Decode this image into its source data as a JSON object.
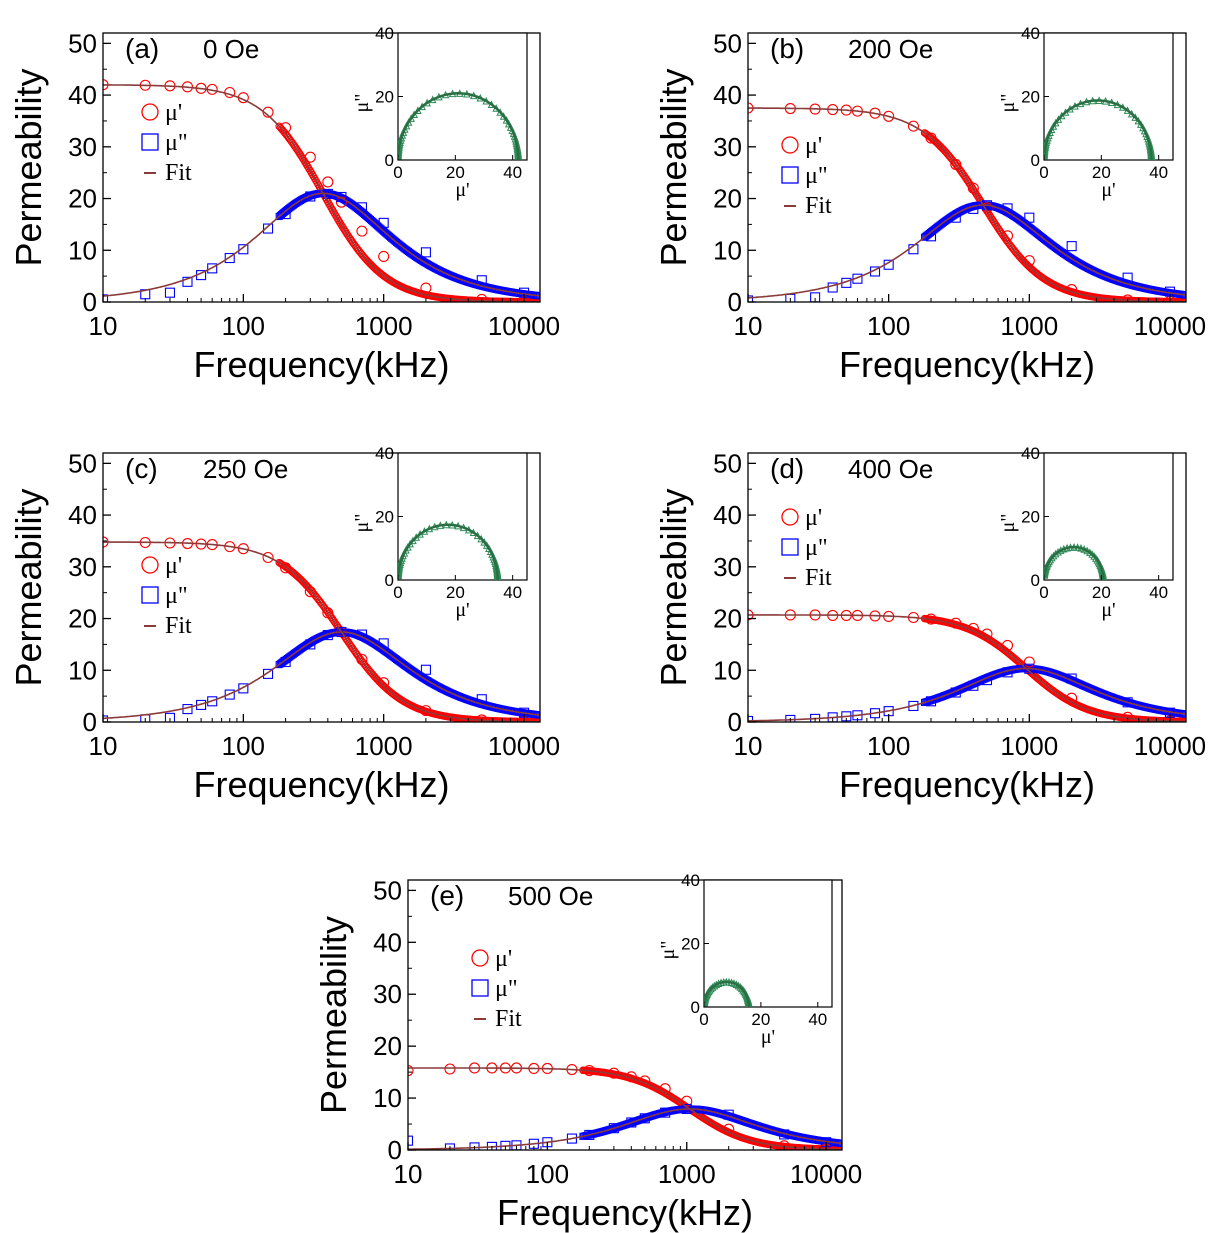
{
  "figure": {
    "panels": [
      {
        "label": "(a)",
        "field": "0 Oe"
      },
      {
        "label": "(b)",
        "field": "200 Oe"
      },
      {
        "label": "(c)",
        "field": "250 Oe"
      },
      {
        "label": "(d)",
        "field": "400 Oe"
      },
      {
        "label": "(e)",
        "field": "500 Oe"
      }
    ]
  },
  "chart_data": [
    {
      "type": "scatter",
      "panel": "(a)",
      "annotation": "0 Oe",
      "xlabel": "Frequency(kHz)",
      "ylabel": "Permeability",
      "x_scale": "log",
      "xlim": [
        10,
        13000
      ],
      "ylim": [
        0,
        52
      ],
      "x_ticks": [
        "10",
        "100",
        "1000",
        "10000"
      ],
      "y_ticks": [
        "0",
        "10",
        "20",
        "30",
        "40",
        "50"
      ],
      "legend": [
        "μ'",
        "μ\"",
        "Fit"
      ],
      "legend_position": "upper-left",
      "model": {
        "mu_s": 42.0,
        "f_r_kHz": 370
      },
      "series": [
        {
          "name": "μ'",
          "color": "#ff0000",
          "marker": "circle",
          "x": [
            10,
            20,
            30,
            40,
            50,
            60,
            80,
            100,
            150,
            200,
            300,
            400,
            500,
            700,
            1000,
            2000,
            5000,
            10000
          ],
          "values": [
            42.0,
            41.9,
            41.8,
            41.6,
            41.3,
            41.1,
            40.5,
            39.5,
            36.7,
            33.7,
            28.0,
            23.2,
            19.3,
            13.7,
            8.8,
            2.7,
            0.5,
            0.1
          ]
        },
        {
          "name": "μ\"",
          "color": "#0000ff",
          "marker": "square",
          "x": [
            10,
            20,
            30,
            40,
            50,
            60,
            80,
            100,
            150,
            200,
            300,
            400,
            500,
            700,
            1000,
            2000,
            5000,
            10000
          ],
          "values": [
            0.5,
            1.5,
            1.8,
            3.9,
            5.2,
            6.5,
            8.5,
            10.2,
            14.2,
            17.0,
            20.4,
            20.9,
            20.3,
            18.3,
            15.3,
            9.6,
            4.2,
            1.8
          ]
        },
        {
          "name": "Fit",
          "color": "#8b3a3a",
          "marker": "line"
        }
      ],
      "inset": {
        "xlabel": "μ'",
        "ylabel": "μ\"",
        "xlim": [
          0,
          45
        ],
        "ylim": [
          0,
          40
        ],
        "x_ticks": [
          "0",
          "20",
          "40"
        ],
        "y_ticks": [
          "0",
          "20",
          "40"
        ],
        "color": "#2e8b57"
      }
    },
    {
      "type": "scatter",
      "panel": "(b)",
      "annotation": "200 Oe",
      "xlabel": "Frequency(kHz)",
      "ylabel": "Permeability",
      "x_scale": "log",
      "xlim": [
        10,
        13000
      ],
      "ylim": [
        0,
        52
      ],
      "x_ticks": [
        "10",
        "100",
        "1000",
        "10000"
      ],
      "y_ticks": [
        "0",
        "10",
        "20",
        "30",
        "40",
        "50"
      ],
      "legend": [
        "μ'",
        "μ\"",
        "Fit"
      ],
      "legend_position": "middle-left",
      "model": {
        "mu_s": 37.5,
        "f_r_kHz": 470
      },
      "series": [
        {
          "name": "μ'",
          "color": "#ff0000",
          "marker": "circle",
          "x": [
            10,
            20,
            30,
            40,
            50,
            60,
            80,
            100,
            150,
            200,
            300,
            400,
            500,
            700,
            1000,
            2000,
            5000,
            10000
          ],
          "values": [
            37.5,
            37.4,
            37.3,
            37.2,
            37.1,
            36.9,
            36.5,
            35.9,
            34.0,
            31.7,
            26.6,
            22.0,
            18.2,
            12.8,
            8.0,
            2.4,
            0.4,
            0.1
          ]
        },
        {
          "name": "μ\"",
          "color": "#0000ff",
          "marker": "square",
          "x": [
            10,
            20,
            30,
            40,
            50,
            60,
            80,
            100,
            150,
            200,
            300,
            400,
            500,
            700,
            1000,
            2000,
            5000,
            10000
          ],
          "values": [
            0.3,
            0.6,
            0.9,
            2.8,
            3.7,
            4.5,
            5.9,
            7.2,
            10.2,
            12.7,
            16.3,
            18.0,
            18.7,
            18.1,
            16.3,
            10.8,
            4.7,
            2.0
          ]
        },
        {
          "name": "Fit",
          "color": "#8b3a3a",
          "marker": "line"
        }
      ],
      "inset": {
        "xlabel": "μ'",
        "ylabel": "μ\"",
        "xlim": [
          0,
          45
        ],
        "ylim": [
          0,
          40
        ],
        "x_ticks": [
          "0",
          "20",
          "40"
        ],
        "y_ticks": [
          "0",
          "20",
          "40"
        ],
        "color": "#2e8b57"
      }
    },
    {
      "type": "scatter",
      "panel": "(c)",
      "annotation": "250 Oe",
      "xlabel": "Frequency(kHz)",
      "ylabel": "Permeability",
      "x_scale": "log",
      "xlim": [
        10,
        13000
      ],
      "ylim": [
        0,
        52
      ],
      "x_ticks": [
        "10",
        "100",
        "1000",
        "10000"
      ],
      "y_ticks": [
        "0",
        "10",
        "20",
        "30",
        "40",
        "50"
      ],
      "legend": [
        "μ'",
        "μ\"",
        "Fit"
      ],
      "legend_position": "middle-left",
      "model": {
        "mu_s": 34.8,
        "f_r_kHz": 500
      },
      "series": [
        {
          "name": "μ'",
          "color": "#ff0000",
          "marker": "circle",
          "x": [
            10,
            20,
            30,
            40,
            50,
            60,
            80,
            100,
            150,
            200,
            300,
            400,
            500,
            700,
            1000,
            2000,
            5000,
            10000
          ],
          "values": [
            34.8,
            34.7,
            34.6,
            34.5,
            34.4,
            34.3,
            33.9,
            33.5,
            31.8,
            29.8,
            25.2,
            21.1,
            17.4,
            12.1,
            7.6,
            2.2,
            0.4,
            0.1
          ]
        },
        {
          "name": "μ\"",
          "color": "#0000ff",
          "marker": "square",
          "x": [
            10,
            20,
            30,
            40,
            50,
            60,
            80,
            100,
            150,
            200,
            300,
            400,
            500,
            700,
            1000,
            2000,
            5000,
            10000
          ],
          "values": [
            0.3,
            0.5,
            0.8,
            2.5,
            3.3,
            4.0,
            5.3,
            6.5,
            9.3,
            11.6,
            15.0,
            16.8,
            17.4,
            16.9,
            15.2,
            10.1,
            4.4,
            1.8
          ]
        },
        {
          "name": "Fit",
          "color": "#8b3a3a",
          "marker": "line"
        }
      ],
      "inset": {
        "xlabel": "μ'",
        "ylabel": "μ\"",
        "xlim": [
          0,
          45
        ],
        "ylim": [
          0,
          40
        ],
        "x_ticks": [
          "0",
          "20",
          "40"
        ],
        "y_ticks": [
          "0",
          "20",
          "40"
        ],
        "color": "#2e8b57"
      }
    },
    {
      "type": "scatter",
      "panel": "(d)",
      "annotation": "400 Oe",
      "xlabel": "Frequency(kHz)",
      "ylabel": "Permeability",
      "x_scale": "log",
      "xlim": [
        10,
        13000
      ],
      "ylim": [
        0,
        52
      ],
      "x_ticks": [
        "10",
        "100",
        "1000",
        "10000"
      ],
      "y_ticks": [
        "0",
        "10",
        "20",
        "30",
        "40",
        "50"
      ],
      "legend": [
        "μ'",
        "μ\"",
        "Fit"
      ],
      "legend_position": "upper-left",
      "model": {
        "mu_s": 20.7,
        "f_r_kHz": 950
      },
      "series": [
        {
          "name": "μ'",
          "color": "#ff0000",
          "marker": "circle",
          "x": [
            10,
            20,
            30,
            40,
            50,
            60,
            80,
            100,
            150,
            200,
            300,
            400,
            500,
            700,
            1000,
            2000,
            5000,
            10000
          ],
          "values": [
            20.7,
            20.7,
            20.7,
            20.6,
            20.6,
            20.6,
            20.5,
            20.4,
            20.2,
            19.9,
            19.1,
            18.1,
            17.0,
            14.8,
            11.6,
            4.6,
            0.9,
            0.2
          ]
        },
        {
          "name": "μ\"",
          "color": "#0000ff",
          "marker": "square",
          "x": [
            10,
            20,
            30,
            40,
            50,
            60,
            80,
            100,
            150,
            200,
            300,
            400,
            500,
            700,
            1000,
            2000,
            5000,
            10000
          ],
          "values": [
            0.2,
            0.4,
            0.6,
            0.9,
            1.1,
            1.3,
            1.7,
            2.1,
            3.1,
            4.0,
            5.7,
            7.0,
            8.1,
            9.6,
            10.3,
            8.4,
            3.8,
            1.8
          ]
        },
        {
          "name": "Fit",
          "color": "#8b3a3a",
          "marker": "line"
        }
      ],
      "inset": {
        "xlabel": "μ'",
        "ylabel": "μ\"",
        "xlim": [
          0,
          45
        ],
        "ylim": [
          0,
          40
        ],
        "x_ticks": [
          "0",
          "20",
          "40"
        ],
        "y_ticks": [
          "0",
          "20",
          "40"
        ],
        "color": "#2e8b57"
      }
    },
    {
      "type": "scatter",
      "panel": "(e)",
      "annotation": "500 Oe",
      "xlabel": "Frequency(kHz)",
      "ylabel": "Permeability",
      "x_scale": "log",
      "xlim": [
        10,
        13000
      ],
      "ylim": [
        0,
        52
      ],
      "x_ticks": [
        "10",
        "100",
        "1000",
        "10000"
      ],
      "y_ticks": [
        "0",
        "10",
        "20",
        "30",
        "40",
        "50"
      ],
      "legend": [
        "μ'",
        "μ\"",
        "Fit"
      ],
      "legend_position": "upper-center",
      "model": {
        "mu_s": 15.8,
        "f_r_kHz": 1050
      },
      "series": [
        {
          "name": "μ'",
          "color": "#ff0000",
          "marker": "circle",
          "x": [
            10,
            20,
            30,
            40,
            50,
            60,
            80,
            100,
            150,
            200,
            300,
            400,
            500,
            700,
            1000,
            2000,
            5000,
            10000
          ],
          "values": [
            15.3,
            15.6,
            15.8,
            15.8,
            15.8,
            15.8,
            15.7,
            15.7,
            15.5,
            15.3,
            14.8,
            14.1,
            13.3,
            11.8,
            9.4,
            4.0,
            0.8,
            0.2
          ]
        },
        {
          "name": "μ\"",
          "color": "#0000ff",
          "marker": "square",
          "x": [
            10,
            20,
            30,
            40,
            50,
            60,
            80,
            100,
            150,
            200,
            300,
            400,
            500,
            700,
            1000,
            2000,
            5000,
            10000
          ],
          "values": [
            1.8,
            0.3,
            0.5,
            0.6,
            0.8,
            0.9,
            1.2,
            1.5,
            2.2,
            2.9,
            4.2,
            5.3,
            6.1,
            7.2,
            7.9,
            6.8,
            3.0,
            1.5
          ]
        },
        {
          "name": "Fit",
          "color": "#8b3a3a",
          "marker": "line"
        }
      ],
      "inset": {
        "xlabel": "μ'",
        "ylabel": "μ\"",
        "xlim": [
          0,
          45
        ],
        "ylim": [
          0,
          40
        ],
        "x_ticks": [
          "0",
          "20",
          "40"
        ],
        "y_ticks": [
          "0",
          "20",
          "40"
        ],
        "color": "#2e8b57"
      }
    }
  ]
}
